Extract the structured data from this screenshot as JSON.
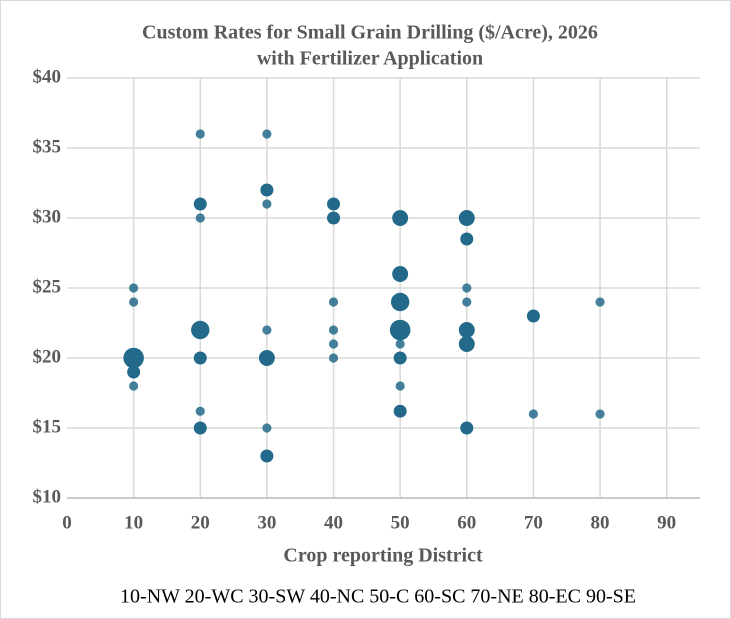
{
  "chart_data": {
    "type": "bubble",
    "title": [
      "Custom Rates for Small Grain Drilling ($/Acre), 2026",
      "with Fertilizer Application"
    ],
    "x_label": "Crop reporting District",
    "footnote": "10-NW 20-WC 30-SW 40-NC 50-C 60-SC 70-NE 80-EC 90-SE",
    "color": "#236a8a",
    "grid": true,
    "xlim": [
      0,
      95
    ],
    "xticks": [
      0,
      10,
      20,
      30,
      40,
      50,
      60,
      70,
      80,
      90
    ],
    "ylim": [
      10,
      40
    ],
    "yticks": [
      {
        "value": 10,
        "label": "$10"
      },
      {
        "value": 15,
        "label": "$15"
      },
      {
        "value": 20,
        "label": "$20"
      },
      {
        "value": 25,
        "label": "$25"
      },
      {
        "value": 30,
        "label": "$30"
      },
      {
        "value": 35,
        "label": "$35"
      },
      {
        "value": 40,
        "label": "$40"
      }
    ],
    "x": [
      10,
      10,
      10,
      10,
      10,
      20,
      20,
      20,
      20,
      20,
      20,
      20,
      30,
      30,
      30,
      30,
      30,
      30,
      30,
      40,
      40,
      40,
      40,
      40,
      40,
      50,
      50,
      50,
      50,
      50,
      50,
      50,
      50,
      60,
      60,
      60,
      60,
      60,
      60,
      60,
      70,
      70,
      80,
      80
    ],
    "values": [
      25,
      24,
      20,
      19,
      18,
      36,
      31,
      30,
      22,
      20,
      16.2,
      15,
      36,
      32,
      31,
      22,
      20,
      15,
      13,
      31,
      30,
      24,
      22,
      21,
      20,
      30,
      26,
      24,
      22,
      21,
      20,
      18,
      16.2,
      30,
      28.5,
      25,
      24,
      22,
      21,
      15,
      23,
      16,
      24,
      16
    ],
    "sizes": [
      1,
      1,
      5,
      2,
      1,
      1,
      2,
      1,
      4,
      2,
      1,
      2,
      1,
      2,
      1,
      1,
      3,
      1,
      2,
      2,
      2,
      1,
      1,
      1,
      1,
      3,
      3,
      4,
      5,
      1,
      2,
      1,
      2,
      3,
      2,
      1,
      1,
      3,
      3,
      2,
      2,
      1,
      1,
      1
    ]
  }
}
